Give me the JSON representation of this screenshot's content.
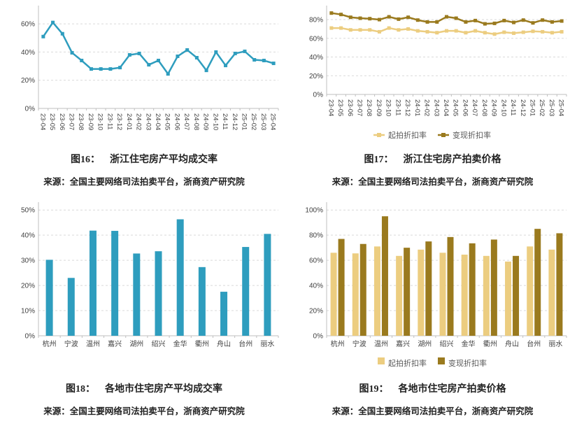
{
  "colors": {
    "teal": "#2E9DBE",
    "light_gold": "#ECCD80",
    "dark_gold": "#9A7A1E",
    "grid": "#D9D9D9",
    "axis": "#BFBFBF",
    "tick_text": "#404040",
    "legend_text": "#595959",
    "caption_text": "#222222"
  },
  "figures": [
    {
      "caption_label": "图16：",
      "caption_title": "浙江住宅房产平均成交率",
      "source": "来源：全国主要网络司法拍卖平台，浙商资产研究院"
    },
    {
      "caption_label": "图17：",
      "caption_title": "浙江住宅房产拍卖价格",
      "source": "来源：全国主要网络司法拍卖平台，浙商资产研究院"
    },
    {
      "caption_label": "图18：",
      "caption_title": "各地市住宅房产平均成交率",
      "source": "来源：全国主要网络司法拍卖平台，浙商资产研究院"
    },
    {
      "caption_label": "图19：",
      "caption_title": "各地市住宅房产拍卖价格",
      "source": "来源：全国主要网络司法拍卖平台，浙商资产研究院"
    }
  ],
  "chart_data": [
    {
      "type": "line",
      "figure": "图16",
      "title": "浙江住宅房产平均成交率",
      "x": [
        "23-04",
        "23-05",
        "23-06",
        "23-07",
        "23-08",
        "23-09",
        "23-10",
        "23-11",
        "23-12",
        "24-01",
        "24-02",
        "24-03",
        "24-04",
        "24-05",
        "24-06",
        "24-07",
        "24-08",
        "24-09",
        "24-10",
        "24-11",
        "24-12",
        "25-01",
        "25-02",
        "25-03",
        "25-04"
      ],
      "series": [
        {
          "color": "#2E9DBE",
          "values": [
            51,
            61,
            53,
            39.5,
            34,
            28,
            28,
            28,
            29,
            38,
            39,
            31,
            34,
            24.5,
            37,
            41.5,
            36,
            27,
            40,
            30.5,
            39,
            40.5,
            34.5,
            34,
            32
          ]
        }
      ],
      "yticks": [
        0,
        20,
        40,
        60
      ],
      "ylim": [
        0,
        71
      ],
      "grid": true,
      "legend": false
    },
    {
      "type": "line",
      "figure": "图17",
      "title": "浙江住宅房产拍卖价格",
      "x": [
        "23-04",
        "23-05",
        "23-06",
        "23-07",
        "23-08",
        "23-09",
        "23-10",
        "23-11",
        "23-12",
        "24-01",
        "24-02",
        "24-03",
        "24-04",
        "24-05",
        "24-06",
        "24-07",
        "24-08",
        "24-09",
        "24-10",
        "24-11",
        "24-12",
        "25-01",
        "25-02",
        "25-03",
        "25-04"
      ],
      "series": [
        {
          "name": "起拍折扣率",
          "color": "#ECCD80",
          "values": [
            71,
            71,
            69,
            69,
            69,
            67,
            71,
            69,
            70,
            68,
            67,
            66,
            68,
            68,
            66,
            68,
            66,
            64.5,
            66.5,
            65.5,
            66.5,
            67.5,
            67,
            66,
            67
          ]
        },
        {
          "name": "变现折扣率",
          "color": "#9A7A1E",
          "values": [
            87,
            85.5,
            82.5,
            81.5,
            81,
            80,
            83,
            80.5,
            82.5,
            79.5,
            77.5,
            77.5,
            83,
            81.5,
            77.5,
            79,
            75.5,
            76,
            79,
            77,
            79.5,
            76.5,
            79.5,
            77.5,
            78.5
          ]
        }
      ],
      "yticks": [
        0,
        20,
        40,
        60,
        80
      ],
      "ylim": [
        0,
        92
      ],
      "grid": true,
      "legend": true,
      "legend_position": "bottom"
    },
    {
      "type": "bar",
      "figure": "图18",
      "title": "各地市住宅房产平均成交率",
      "categories": [
        "杭州",
        "宁波",
        "温州",
        "嘉兴",
        "湖州",
        "绍兴",
        "金华",
        "衢州",
        "舟山",
        "台州",
        "丽水"
      ],
      "series": [
        {
          "color": "#2E9DBE",
          "values": [
            30.2,
            23,
            41.8,
            41.7,
            32.7,
            33.6,
            46.3,
            27.3,
            17.5,
            35.3,
            40.5
          ]
        }
      ],
      "yticks": [
        0,
        10,
        20,
        30,
        40,
        50
      ],
      "ylim": [
        0,
        52
      ],
      "grid": true,
      "legend": false
    },
    {
      "type": "bar",
      "figure": "图19",
      "title": "各地市住宅房产拍卖价格",
      "categories": [
        "杭州",
        "宁波",
        "温州",
        "嘉兴",
        "湖州",
        "绍兴",
        "金华",
        "衢州",
        "舟山",
        "台州",
        "丽水"
      ],
      "series": [
        {
          "name": "起拍折扣率",
          "color": "#ECCD80",
          "values": [
            66,
            65.5,
            71,
            63.5,
            68.5,
            66,
            64.5,
            63.5,
            59,
            71,
            68.5
          ]
        },
        {
          "name": "变现折扣率",
          "color": "#9A7A1E",
          "values": [
            77,
            73,
            95,
            70,
            75,
            78.5,
            73.5,
            76.5,
            63.5,
            85,
            81.5
          ]
        }
      ],
      "yticks": [
        0,
        20,
        40,
        60,
        80,
        100
      ],
      "ylim": [
        0,
        104
      ],
      "grid": true,
      "legend": true,
      "legend_position": "bottom"
    }
  ]
}
